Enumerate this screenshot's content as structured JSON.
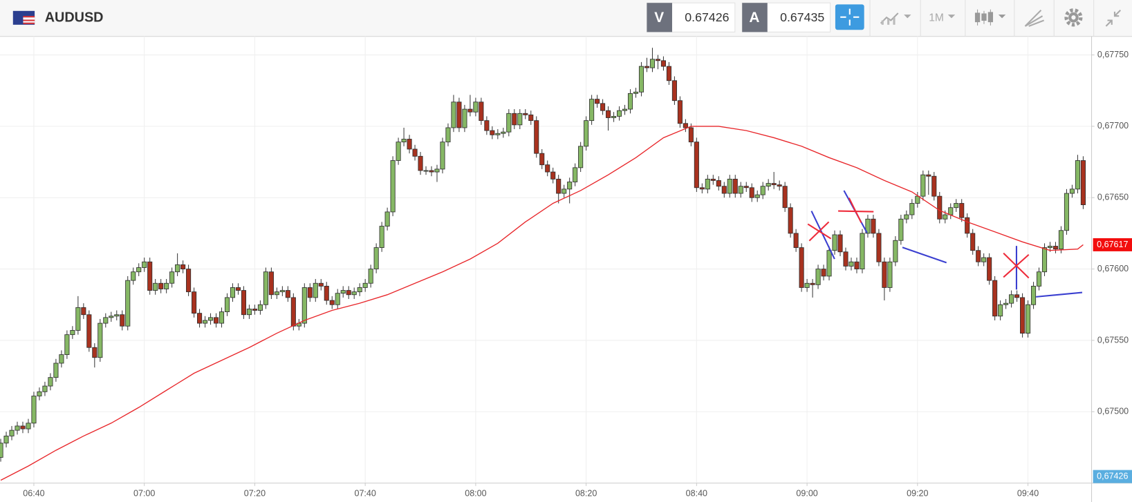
{
  "header": {
    "symbol": "AUDUSD",
    "sell_label": "V",
    "sell_price": "0.67426",
    "buy_label": "A",
    "buy_price": "0.67435",
    "timeframe": "1M"
  },
  "chart_data": {
    "type": "candlestick",
    "up_color": "#86b865",
    "down_color": "#a8321f",
    "grid": true,
    "x": [
      "06:34",
      "06:35",
      "06:36",
      "06:37",
      "06:38",
      "06:39",
      "06:40",
      "06:41",
      "06:42",
      "06:43",
      "06:44",
      "06:45",
      "06:46",
      "06:47",
      "06:48",
      "06:49",
      "06:50",
      "06:51",
      "06:52",
      "06:53",
      "06:54",
      "06:55",
      "06:56",
      "06:57",
      "06:58",
      "06:59",
      "07:00",
      "07:01",
      "07:02",
      "07:03",
      "07:04",
      "07:05",
      "07:06",
      "07:07",
      "07:08",
      "07:09",
      "07:10",
      "07:11",
      "07:12",
      "07:13",
      "07:14",
      "07:15",
      "07:16",
      "07:17",
      "07:18",
      "07:19",
      "07:20",
      "07:21",
      "07:22",
      "07:23",
      "07:24",
      "07:25",
      "07:26",
      "07:27",
      "07:28",
      "07:29",
      "07:30",
      "07:31",
      "07:32",
      "07:33",
      "07:34",
      "07:35",
      "07:36",
      "07:37",
      "07:38",
      "07:39",
      "07:40",
      "07:41",
      "07:42",
      "07:43",
      "07:44",
      "07:45",
      "07:46",
      "07:47",
      "07:48",
      "07:49",
      "07:50",
      "07:51",
      "07:52",
      "07:53",
      "07:54",
      "07:55",
      "07:56",
      "07:57",
      "07:58",
      "07:59",
      "08:00",
      "08:01",
      "08:02",
      "08:03",
      "08:04",
      "08:05",
      "08:06",
      "08:07",
      "08:08",
      "08:09",
      "08:10",
      "08:11",
      "08:12",
      "08:13",
      "08:14",
      "08:15",
      "08:16",
      "08:17",
      "08:18",
      "08:19",
      "08:20",
      "08:21",
      "08:22",
      "08:23",
      "08:24",
      "08:25",
      "08:26",
      "08:27",
      "08:28",
      "08:29",
      "08:30",
      "08:31",
      "08:32",
      "08:33",
      "08:34",
      "08:35",
      "08:36",
      "08:37",
      "08:38",
      "08:39",
      "08:40",
      "08:41",
      "08:42",
      "08:43",
      "08:44",
      "08:45",
      "08:46",
      "08:47",
      "08:48",
      "08:49",
      "08:50",
      "08:51",
      "08:52",
      "08:53",
      "08:54",
      "08:55",
      "08:56",
      "08:57",
      "08:58",
      "08:59",
      "09:00",
      "09:01",
      "09:02",
      "09:03",
      "09:04",
      "09:05",
      "09:06",
      "09:07",
      "09:08",
      "09:09",
      "09:10",
      "09:11",
      "09:12",
      "09:13",
      "09:14",
      "09:15",
      "09:16",
      "09:17",
      "09:18",
      "09:19",
      "09:20",
      "09:21",
      "09:22",
      "09:23",
      "09:24",
      "09:25",
      "09:26",
      "09:27",
      "09:28",
      "09:29",
      "09:30",
      "09:31",
      "09:32",
      "09:33",
      "09:34",
      "09:35",
      "09:36",
      "09:37",
      "09:38",
      "09:39",
      "09:40",
      "09:41",
      "09:42",
      "09:43",
      "09:44",
      "09:45",
      "09:46",
      "09:47",
      "09:48",
      "09:49",
      "09:50"
    ],
    "open": [
      0.67468,
      0.67478,
      0.67483,
      0.67487,
      0.6749,
      0.67488,
      0.67492,
      0.67511,
      0.67514,
      0.67518,
      0.67524,
      0.67534,
      0.6754,
      0.67554,
      0.67557,
      0.67573,
      0.67568,
      0.67545,
      0.67538,
      0.67562,
      0.67566,
      0.67567,
      0.67568,
      0.6756,
      0.67592,
      0.67598,
      0.67601,
      0.67605,
      0.67585,
      0.6759,
      0.67586,
      0.6759,
      0.67598,
      0.67603,
      0.676,
      0.67584,
      0.67569,
      0.67562,
      0.67564,
      0.67566,
      0.67562,
      0.6757,
      0.6758,
      0.67587,
      0.67585,
      0.67568,
      0.67572,
      0.67571,
      0.67575,
      0.67598,
      0.67582,
      0.67584,
      0.67585,
      0.6758,
      0.6756,
      0.67562,
      0.67587,
      0.6758,
      0.6759,
      0.67588,
      0.67578,
      0.67575,
      0.67583,
      0.67585,
      0.67582,
      0.67584,
      0.67587,
      0.6759,
      0.676,
      0.67615,
      0.6763,
      0.6764,
      0.67676,
      0.67689,
      0.67691,
      0.67684,
      0.67679,
      0.67669,
      0.67669,
      0.67668,
      0.6767,
      0.67689,
      0.67699,
      0.67717,
      0.67699,
      0.67712,
      0.6771,
      0.67717,
      0.67704,
      0.67697,
      0.67694,
      0.67695,
      0.67696,
      0.67709,
      0.67701,
      0.67709,
      0.67708,
      0.67704,
      0.67681,
      0.67673,
      0.67668,
      0.67663,
      0.67653,
      0.67656,
      0.67661,
      0.67671,
      0.67686,
      0.67704,
      0.67719,
      0.67716,
      0.67711,
      0.67706,
      0.67707,
      0.67711,
      0.67712,
      0.67723,
      0.67724,
      0.67742,
      0.67741,
      0.67747,
      0.67746,
      0.67742,
      0.67732,
      0.67718,
      0.67702,
      0.67699,
      0.67689,
      0.67657,
      0.67656,
      0.67663,
      0.67662,
      0.67658,
      0.67653,
      0.67663,
      0.67653,
      0.67658,
      0.67657,
      0.6765,
      0.67652,
      0.67658,
      0.6766,
      0.67659,
      0.67658,
      0.67643,
      0.67625,
      0.67615,
      0.67587,
      0.6759,
      0.67589,
      0.676,
      0.67595,
      0.67613,
      0.67624,
      0.67612,
      0.67602,
      0.67605,
      0.676,
      0.67625,
      0.67635,
      0.67625,
      0.67605,
      0.67587,
      0.67605,
      0.6762,
      0.67635,
      0.67638,
      0.67646,
      0.67651,
      0.67666,
      0.67665,
      0.67651,
      0.67635,
      0.67638,
      0.67643,
      0.67646,
      0.67636,
      0.67625,
      0.67613,
      0.67605,
      0.67608,
      0.67592,
      0.67567,
      0.67575,
      0.67576,
      0.67582,
      0.6758,
      0.67555,
      0.67575,
      0.67588,
      0.67598,
      0.67615,
      0.67616,
      0.67614,
      0.67627,
      0.67653,
      0.67656,
      0.67676
    ],
    "high": [
      0.67481,
      0.67486,
      0.6749,
      0.67493,
      0.67493,
      0.67495,
      0.67514,
      0.67517,
      0.67521,
      0.67527,
      0.67537,
      0.67543,
      0.67557,
      0.6756,
      0.67581,
      0.67576,
      0.67571,
      0.67548,
      0.67565,
      0.67569,
      0.6757,
      0.67571,
      0.67571,
      0.67595,
      0.67601,
      0.67604,
      0.67608,
      0.67608,
      0.67593,
      0.67593,
      0.67593,
      0.67601,
      0.67611,
      0.67606,
      0.67603,
      0.67587,
      0.67572,
      0.67567,
      0.67569,
      0.67569,
      0.67573,
      0.67583,
      0.6759,
      0.6759,
      0.67588,
      0.67575,
      0.67575,
      0.67578,
      0.67601,
      0.67601,
      0.67587,
      0.67588,
      0.67588,
      0.67583,
      0.67565,
      0.6759,
      0.6759,
      0.67593,
      0.67593,
      0.67591,
      0.67581,
      0.67586,
      0.67588,
      0.67588,
      0.67587,
      0.6759,
      0.67593,
      0.67603,
      0.67618,
      0.67633,
      0.67643,
      0.67679,
      0.67692,
      0.67699,
      0.67694,
      0.67687,
      0.67682,
      0.67672,
      0.67672,
      0.67673,
      0.67692,
      0.67702,
      0.67722,
      0.6772,
      0.67715,
      0.67722,
      0.6772,
      0.6772,
      0.67707,
      0.677,
      0.67698,
      0.67699,
      0.67712,
      0.67712,
      0.67712,
      0.67712,
      0.67711,
      0.67707,
      0.67684,
      0.67676,
      0.67671,
      0.67666,
      0.67659,
      0.67664,
      0.67674,
      0.67689,
      0.67707,
      0.67722,
      0.67722,
      0.67719,
      0.67714,
      0.6771,
      0.67714,
      0.67715,
      0.67726,
      0.67727,
      0.67745,
      0.67748,
      0.67755,
      0.6775,
      0.67749,
      0.67745,
      0.67735,
      0.67721,
      0.67705,
      0.67702,
      0.67692,
      0.6766,
      0.67666,
      0.67666,
      0.67665,
      0.67661,
      0.67666,
      0.67666,
      0.67661,
      0.67661,
      0.6766,
      0.67655,
      0.67661,
      0.67663,
      0.67668,
      0.67662,
      0.67661,
      0.67646,
      0.67628,
      0.67618,
      0.67593,
      0.67593,
      0.67603,
      0.67603,
      0.67616,
      0.67627,
      0.67627,
      0.67615,
      0.67608,
      0.67608,
      0.67628,
      0.67638,
      0.67638,
      0.67628,
      0.67608,
      0.67608,
      0.67623,
      0.67638,
      0.67641,
      0.67649,
      0.67654,
      0.67669,
      0.67669,
      0.67668,
      0.67654,
      0.67641,
      0.67646,
      0.67649,
      0.67649,
      0.67639,
      0.67628,
      0.67616,
      0.67611,
      0.67611,
      0.67595,
      0.67578,
      0.67579,
      0.67585,
      0.67585,
      0.67583,
      0.67578,
      0.67591,
      0.67601,
      0.67618,
      0.67619,
      0.67619,
      0.6763,
      0.67656,
      0.67659,
      0.6768,
      0.67679
    ],
    "low": [
      0.67465,
      0.67475,
      0.6748,
      0.67484,
      0.67485,
      0.67485,
      0.67489,
      0.67508,
      0.67511,
      0.67515,
      0.67521,
      0.67531,
      0.67537,
      0.67551,
      0.67554,
      0.67565,
      0.67542,
      0.67531,
      0.67535,
      0.67559,
      0.67563,
      0.67564,
      0.67557,
      0.67557,
      0.67589,
      0.67595,
      0.67598,
      0.67582,
      0.67582,
      0.67583,
      0.67583,
      0.67587,
      0.67595,
      0.67597,
      0.67581,
      0.67566,
      0.67559,
      0.67559,
      0.67561,
      0.67559,
      0.67559,
      0.67567,
      0.67577,
      0.67582,
      0.67565,
      0.67565,
      0.67568,
      0.67568,
      0.67572,
      0.67579,
      0.67579,
      0.67581,
      0.67577,
      0.67557,
      0.67557,
      0.67559,
      0.67577,
      0.67577,
      0.67585,
      0.67575,
      0.67572,
      0.67572,
      0.6758,
      0.67579,
      0.67579,
      0.67581,
      0.67584,
      0.67587,
      0.67597,
      0.67612,
      0.67627,
      0.67637,
      0.67673,
      0.67686,
      0.67681,
      0.67676,
      0.67666,
      0.67666,
      0.67665,
      0.67661,
      0.67667,
      0.67686,
      0.67696,
      0.67696,
      0.67696,
      0.67707,
      0.67707,
      0.67701,
      0.67694,
      0.67691,
      0.67691,
      0.67692,
      0.67693,
      0.67698,
      0.67698,
      0.67705,
      0.67701,
      0.67678,
      0.6767,
      0.67665,
      0.6766,
      0.67646,
      0.6765,
      0.67646,
      0.67658,
      0.67668,
      0.67683,
      0.67701,
      0.67713,
      0.67708,
      0.67697,
      0.67703,
      0.67704,
      0.67708,
      0.67709,
      0.6772,
      0.67721,
      0.67738,
      0.67738,
      0.6774,
      0.67739,
      0.67729,
      0.67715,
      0.67699,
      0.67696,
      0.67686,
      0.67654,
      0.67653,
      0.67653,
      0.67659,
      0.67655,
      0.6765,
      0.6765,
      0.6765,
      0.6765,
      0.67654,
      0.67647,
      0.67647,
      0.67649,
      0.67655,
      0.67656,
      0.67655,
      0.6764,
      0.67622,
      0.67612,
      0.67584,
      0.67584,
      0.6758,
      0.67586,
      0.67592,
      0.67592,
      0.6761,
      0.67609,
      0.67599,
      0.67599,
      0.67597,
      0.67597,
      0.67622,
      0.67622,
      0.67602,
      0.67578,
      0.67584,
      0.67602,
      0.67617,
      0.67632,
      0.67635,
      0.67643,
      0.67648,
      0.67652,
      0.67648,
      0.67632,
      0.67632,
      0.67635,
      0.6764,
      0.67633,
      0.67622,
      0.6761,
      0.67602,
      0.67602,
      0.67589,
      0.67564,
      0.67564,
      0.67572,
      0.67573,
      0.67577,
      0.67552,
      0.67552,
      0.67572,
      0.67585,
      0.67595,
      0.67612,
      0.67611,
      0.67611,
      0.67624,
      0.6765,
      0.67653,
      0.67642
    ],
    "close": [
      0.67478,
      0.67483,
      0.67487,
      0.6749,
      0.67488,
      0.67492,
      0.67511,
      0.67514,
      0.67518,
      0.67524,
      0.67534,
      0.6754,
      0.67554,
      0.67557,
      0.67573,
      0.67568,
      0.67545,
      0.67538,
      0.67562,
      0.67566,
      0.67567,
      0.67568,
      0.6756,
      0.67592,
      0.67598,
      0.67601,
      0.67605,
      0.67585,
      0.6759,
      0.67586,
      0.6759,
      0.67598,
      0.67603,
      0.676,
      0.67584,
      0.67569,
      0.67562,
      0.67564,
      0.67566,
      0.67562,
      0.6757,
      0.6758,
      0.67587,
      0.67585,
      0.67568,
      0.67572,
      0.67571,
      0.67575,
      0.67598,
      0.67582,
      0.67584,
      0.67585,
      0.6758,
      0.6756,
      0.67562,
      0.67587,
      0.6758,
      0.6759,
      0.67588,
      0.67578,
      0.67575,
      0.67583,
      0.67585,
      0.67582,
      0.67584,
      0.67587,
      0.6759,
      0.676,
      0.67615,
      0.6763,
      0.6764,
      0.67676,
      0.67689,
      0.67691,
      0.67684,
      0.67679,
      0.67669,
      0.67669,
      0.67668,
      0.6767,
      0.67689,
      0.67699,
      0.67717,
      0.67699,
      0.67712,
      0.6771,
      0.67717,
      0.67704,
      0.67697,
      0.67694,
      0.67695,
      0.67696,
      0.67709,
      0.67701,
      0.67709,
      0.67708,
      0.67704,
      0.67681,
      0.67673,
      0.67668,
      0.67663,
      0.67653,
      0.67656,
      0.67661,
      0.67671,
      0.67686,
      0.67704,
      0.67719,
      0.67716,
      0.67711,
      0.67706,
      0.67707,
      0.67711,
      0.67712,
      0.67723,
      0.67724,
      0.67742,
      0.67741,
      0.67747,
      0.67746,
      0.67742,
      0.67732,
      0.67718,
      0.67702,
      0.67699,
      0.67689,
      0.67657,
      0.67656,
      0.67663,
      0.67662,
      0.67658,
      0.67653,
      0.67663,
      0.67653,
      0.67658,
      0.67657,
      0.6765,
      0.67652,
      0.67658,
      0.6766,
      0.67659,
      0.67658,
      0.67643,
      0.67625,
      0.67615,
      0.67587,
      0.6759,
      0.67589,
      0.676,
      0.67595,
      0.67613,
      0.67624,
      0.67612,
      0.67602,
      0.67605,
      0.676,
      0.67625,
      0.67635,
      0.67625,
      0.67605,
      0.67587,
      0.67605,
      0.6762,
      0.67635,
      0.67638,
      0.67646,
      0.67651,
      0.67666,
      0.67665,
      0.67651,
      0.67635,
      0.67638,
      0.67643,
      0.67646,
      0.67636,
      0.67625,
      0.67613,
      0.67605,
      0.67608,
      0.67592,
      0.67567,
      0.67575,
      0.67576,
      0.67582,
      0.6758,
      0.67555,
      0.67575,
      0.67588,
      0.67598,
      0.67615,
      0.67616,
      0.67614,
      0.67627,
      0.67653,
      0.67656,
      0.67676,
      0.67645
    ],
    "overlay": {
      "color": "#e8262a",
      "x": [
        "06:34",
        "06:39",
        "06:44",
        "06:49",
        "06:54",
        "06:59",
        "07:04",
        "07:09",
        "07:14",
        "07:19",
        "07:24",
        "07:29",
        "07:34",
        "07:39",
        "07:44",
        "07:49",
        "07:54",
        "07:59",
        "08:04",
        "08:09",
        "08:14",
        "08:19",
        "08:24",
        "08:29",
        "08:34",
        "08:39",
        "08:44",
        "08:49",
        "08:54",
        "08:59",
        "09:04",
        "09:09",
        "09:14",
        "09:19",
        "09:24",
        "09:29",
        "09:34",
        "09:39",
        "09:44",
        "09:49",
        "09:50"
      ],
      "values": [
        0.67452,
        0.67462,
        0.67473,
        0.67483,
        0.67492,
        0.67503,
        0.67515,
        0.67527,
        0.67536,
        0.67545,
        0.67555,
        0.67564,
        0.67571,
        0.67576,
        0.67582,
        0.6759,
        0.67598,
        0.67607,
        0.67618,
        0.67633,
        0.67646,
        0.67655,
        0.67666,
        0.67678,
        0.67692,
        0.677,
        0.677,
        0.67697,
        0.67692,
        0.67686,
        0.67678,
        0.67671,
        0.67662,
        0.67654,
        0.67641,
        0.67633,
        0.67626,
        0.67619,
        0.67613,
        0.67614,
        0.67617
      ]
    },
    "ylim": [
      0.6745,
      0.67763
    ],
    "yticks": [
      {
        "value": 0.675,
        "label": "0,67500"
      },
      {
        "value": 0.6755,
        "label": "0,67550"
      },
      {
        "value": 0.676,
        "label": "0,67600"
      },
      {
        "value": 0.6765,
        "label": "0,67650"
      },
      {
        "value": 0.677,
        "label": "0,67700"
      },
      {
        "value": 0.6775,
        "label": "0,67750"
      }
    ],
    "xticks": [
      "06:40",
      "07:00",
      "07:20",
      "07:40",
      "08:00",
      "08:20",
      "08:40",
      "09:00",
      "09:20",
      "09:40"
    ],
    "markers": [
      {
        "value": 0.67617,
        "label": "0,67617",
        "color": "#f20d0d"
      },
      {
        "value": 0.67426,
        "label": "0,67426",
        "color": "#5aaee0"
      }
    ]
  }
}
